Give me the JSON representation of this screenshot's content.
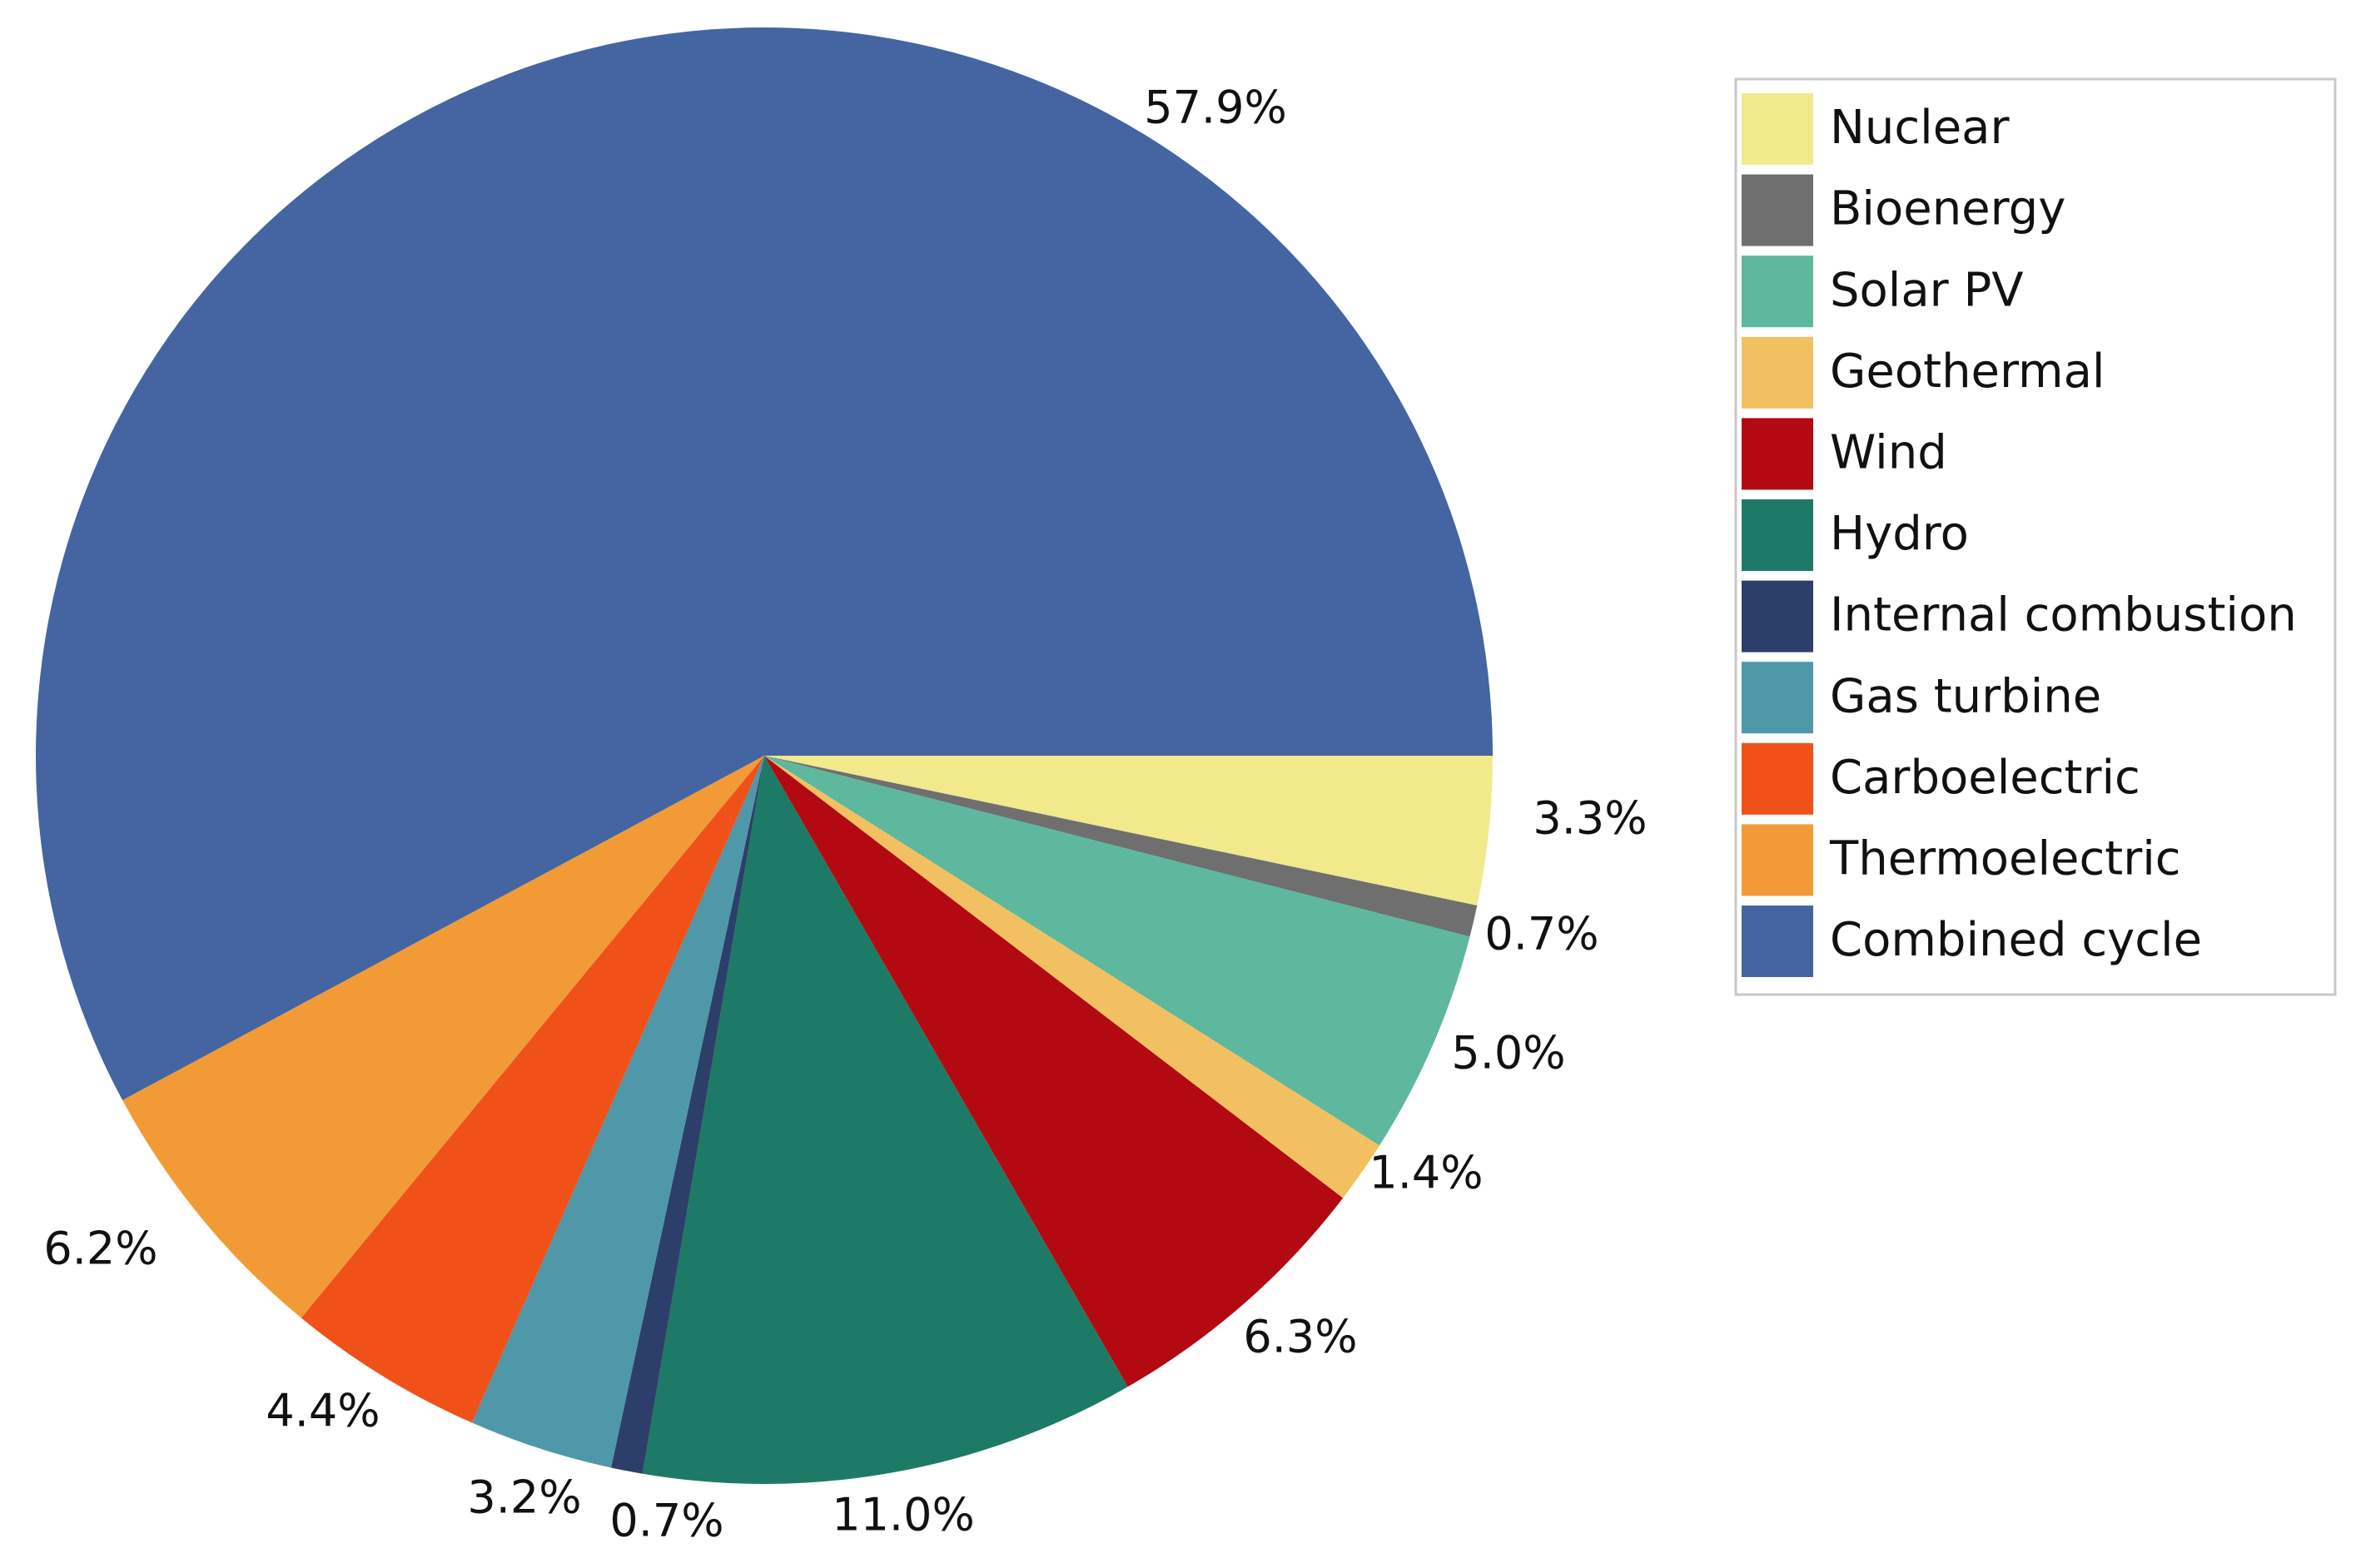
{
  "chart_data": {
    "type": "pie",
    "title": "",
    "legend_position": "top-right",
    "series": [
      {
        "name": "Nuclear",
        "value": 3.3,
        "label": "3.3%",
        "color": "#F1E98C"
      },
      {
        "name": "Bioenergy",
        "value": 0.7,
        "label": "0.7%",
        "color": "#6F6F6F"
      },
      {
        "name": "Solar PV",
        "value": 5.0,
        "label": "5.0%",
        "color": "#5DB89E"
      },
      {
        "name": "Geothermal",
        "value": 1.4,
        "label": "1.4%",
        "color": "#F2C061"
      },
      {
        "name": "Wind",
        "value": 6.3,
        "label": "6.3%",
        "color": "#B20A10"
      },
      {
        "name": "Hydro",
        "value": 11.0,
        "label": "11.0%",
        "color": "#1D7A66"
      },
      {
        "name": "Internal combustion",
        "value": 0.7,
        "label": "0.7%",
        "color": "#2C3F6A"
      },
      {
        "name": "Gas turbine",
        "value": 3.2,
        "label": "3.2%",
        "color": "#4E98A9"
      },
      {
        "name": "Carboelectric",
        "value": 4.4,
        "label": "4.4%",
        "color": "#F05119"
      },
      {
        "name": "Thermoelectric",
        "value": 6.2,
        "label": "6.2%",
        "color": "#F29B36"
      },
      {
        "name": "Combined cycle",
        "value": 57.9,
        "label": "57.9%",
        "color": "#4465A1"
      }
    ]
  }
}
